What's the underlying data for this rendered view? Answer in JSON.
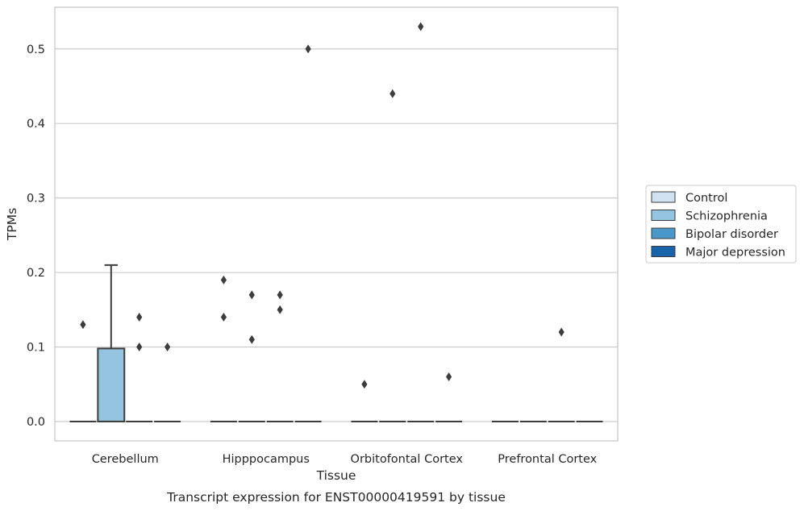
{
  "chart_data": {
    "type": "box",
    "xlabel": "Tissue",
    "ylabel": "TPMs",
    "caption": "Transcript expression for ENST00000419591 by tissue",
    "ylim": [
      -0.026,
      0.556
    ],
    "yticks": [
      0.0,
      0.1,
      0.2,
      0.3,
      0.4,
      0.5
    ],
    "ytick_labels": [
      "0.0",
      "0.1",
      "0.2",
      "0.3",
      "0.4",
      "0.5"
    ],
    "grid": "horizontal",
    "legend_position": "right",
    "categories": [
      "Cerebellum",
      "Hipppocampus",
      "Orbitofontal Cortex",
      "Prefrontal Cortex"
    ],
    "series": [
      {
        "name": "Control",
        "color": "#d0e1f2"
      },
      {
        "name": "Schizophrenia",
        "color": "#94c4df"
      },
      {
        "name": "Bipolar disorder",
        "color": "#4a98c9"
      },
      {
        "name": "Major depression",
        "color": "#1764ab"
      }
    ],
    "boxes": [
      {
        "category": 0,
        "series": 0,
        "q1": 0.0,
        "median": 0.0,
        "q3": 0.0,
        "whisker_low": 0.0,
        "whisker_high": 0.0,
        "outliers": [
          0.13
        ]
      },
      {
        "category": 0,
        "series": 1,
        "q1": 0.0,
        "median": 0.0,
        "q3": 0.098,
        "whisker_low": 0.0,
        "whisker_high": 0.21,
        "outliers": []
      },
      {
        "category": 0,
        "series": 2,
        "q1": 0.0,
        "median": 0.0,
        "q3": 0.0,
        "whisker_low": 0.0,
        "whisker_high": 0.0,
        "outliers": [
          0.14,
          0.1
        ]
      },
      {
        "category": 0,
        "series": 3,
        "q1": 0.0,
        "median": 0.0,
        "q3": 0.0,
        "whisker_low": 0.0,
        "whisker_high": 0.0,
        "outliers": [
          0.1
        ]
      },
      {
        "category": 1,
        "series": 0,
        "q1": 0.0,
        "median": 0.0,
        "q3": 0.0,
        "whisker_low": 0.0,
        "whisker_high": 0.0,
        "outliers": [
          0.19,
          0.14
        ]
      },
      {
        "category": 1,
        "series": 1,
        "q1": 0.0,
        "median": 0.0,
        "q3": 0.0,
        "whisker_low": 0.0,
        "whisker_high": 0.0,
        "outliers": [
          0.17,
          0.11
        ]
      },
      {
        "category": 1,
        "series": 2,
        "q1": 0.0,
        "median": 0.0,
        "q3": 0.0,
        "whisker_low": 0.0,
        "whisker_high": 0.0,
        "outliers": [
          0.17,
          0.15
        ]
      },
      {
        "category": 1,
        "series": 3,
        "q1": 0.0,
        "median": 0.0,
        "q3": 0.0,
        "whisker_low": 0.0,
        "whisker_high": 0.0,
        "outliers": [
          0.5
        ]
      },
      {
        "category": 2,
        "series": 0,
        "q1": 0.0,
        "median": 0.0,
        "q3": 0.0,
        "whisker_low": 0.0,
        "whisker_high": 0.0,
        "outliers": [
          0.05
        ]
      },
      {
        "category": 2,
        "series": 1,
        "q1": 0.0,
        "median": 0.0,
        "q3": 0.0,
        "whisker_low": 0.0,
        "whisker_high": 0.0,
        "outliers": [
          0.44
        ]
      },
      {
        "category": 2,
        "series": 2,
        "q1": 0.0,
        "median": 0.0,
        "q3": 0.0,
        "whisker_low": 0.0,
        "whisker_high": 0.0,
        "outliers": [
          0.53
        ]
      },
      {
        "category": 2,
        "series": 3,
        "q1": 0.0,
        "median": 0.0,
        "q3": 0.0,
        "whisker_low": 0.0,
        "whisker_high": 0.0,
        "outliers": [
          0.06
        ]
      },
      {
        "category": 3,
        "series": 0,
        "q1": 0.0,
        "median": 0.0,
        "q3": 0.0,
        "whisker_low": 0.0,
        "whisker_high": 0.0,
        "outliers": []
      },
      {
        "category": 3,
        "series": 1,
        "q1": 0.0,
        "median": 0.0,
        "q3": 0.0,
        "whisker_low": 0.0,
        "whisker_high": 0.0,
        "outliers": []
      },
      {
        "category": 3,
        "series": 2,
        "q1": 0.0,
        "median": 0.0,
        "q3": 0.0,
        "whisker_low": 0.0,
        "whisker_high": 0.0,
        "outliers": [
          0.12
        ]
      },
      {
        "category": 3,
        "series": 3,
        "q1": 0.0,
        "median": 0.0,
        "q3": 0.0,
        "whisker_low": 0.0,
        "whisker_high": 0.0,
        "outliers": []
      }
    ],
    "colors": {
      "grid": "#cccccc",
      "frame": "#cccccc",
      "box_edge": "#3d3d3d",
      "outlier": "#3d3d3d"
    }
  }
}
